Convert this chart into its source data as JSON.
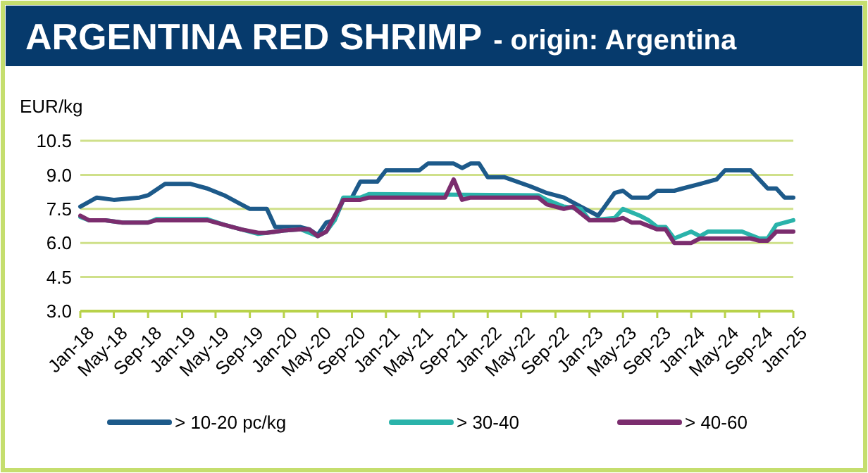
{
  "chart_data": {
    "type": "line",
    "title": "ARGENTINA RED SHRIMP",
    "subtitle": "- origin: Argentina",
    "ylabel": "EUR/kg",
    "xlim": [
      "2018-01",
      "2025-01"
    ],
    "xticks": [
      {
        "value": "2018-01",
        "label": "Jan-18"
      },
      {
        "value": "2018-05",
        "label": "May-18"
      },
      {
        "value": "2018-09",
        "label": "Sep-18"
      },
      {
        "value": "2019-01",
        "label": "Jan-19"
      },
      {
        "value": "2019-05",
        "label": "May-19"
      },
      {
        "value": "2019-09",
        "label": "Sep-19"
      },
      {
        "value": "2020-01",
        "label": "Jan-20"
      },
      {
        "value": "2020-05",
        "label": "May-20"
      },
      {
        "value": "2020-09",
        "label": "Sep-20"
      },
      {
        "value": "2021-01",
        "label": "Jan-21"
      },
      {
        "value": "2021-05",
        "label": "May-21"
      },
      {
        "value": "2021-09",
        "label": "Sep-21"
      },
      {
        "value": "2022-01",
        "label": "Jan-22"
      },
      {
        "value": "2022-05",
        "label": "May-22"
      },
      {
        "value": "2022-09",
        "label": "Sep-22"
      },
      {
        "value": "2023-01",
        "label": "Jan-23"
      },
      {
        "value": "2023-05",
        "label": "May-23"
      },
      {
        "value": "2023-09",
        "label": "Sep-23"
      },
      {
        "value": "2024-01",
        "label": "Jan-24"
      },
      {
        "value": "2024-05",
        "label": "May-24"
      },
      {
        "value": "2024-09",
        "label": "Sep-24"
      },
      {
        "value": "2025-01",
        "label": "Jan-25"
      }
    ],
    "ylim": [
      3,
      10.5
    ],
    "yticks": [
      {
        "value": 3,
        "label": "3.0"
      },
      {
        "value": 4.5,
        "label": "4.5"
      },
      {
        "value": 6,
        "label": "6.0"
      },
      {
        "value": 7.5,
        "label": "7.5"
      },
      {
        "value": 9,
        "label": "9.0"
      },
      {
        "value": 10.5,
        "label": "10.5"
      }
    ],
    "grid": "y",
    "legend": "bottom",
    "marker": "none",
    "line_style": "solid",
    "series": [
      {
        "name": "> 10-20 pc/kg",
        "color": "#1d5a8a",
        "x": [
          "2018-01",
          "2018-03",
          "2018-05",
          "2018-08",
          "2018-09",
          "2018-11",
          "2019-02",
          "2019-04",
          "2019-06",
          "2019-08",
          "2019-09",
          "2019-11",
          "2019-12",
          "2020-03",
          "2020-04",
          "2020-05",
          "2020-06",
          "2020-07",
          "2020-08",
          "2020-09",
          "2020-10",
          "2020-12",
          "2021-01",
          "2021-05",
          "2021-06",
          "2021-09",
          "2021-10",
          "2021-11",
          "2021-12",
          "2022-01",
          "2022-03",
          "2022-06",
          "2022-08",
          "2022-10",
          "2022-12",
          "2023-02",
          "2023-04",
          "2023-05",
          "2023-06",
          "2023-08",
          "2023-09",
          "2023-11",
          "2023-12",
          "2024-02",
          "2024-04",
          "2024-05",
          "2024-08",
          "2024-10",
          "2024-11",
          "2024-12",
          "2025-01"
        ],
        "values": [
          7.6,
          8.0,
          7.9,
          8.0,
          8.1,
          8.6,
          8.6,
          8.4,
          8.1,
          7.7,
          7.5,
          7.5,
          6.7,
          6.7,
          6.6,
          6.35,
          6.9,
          7.0,
          7.9,
          8.0,
          8.7,
          8.7,
          9.2,
          9.2,
          9.5,
          9.5,
          9.3,
          9.5,
          9.5,
          8.9,
          8.9,
          8.5,
          8.2,
          8.0,
          7.6,
          7.2,
          8.2,
          8.3,
          8.0,
          8.0,
          8.3,
          8.3,
          8.4,
          8.6,
          8.8,
          9.2,
          9.2,
          8.4,
          8.4,
          8.0,
          8.0
        ]
      },
      {
        "name": "> 30-40",
        "color": "#2ab3aa",
        "x": [
          "2018-01",
          "2018-02",
          "2018-04",
          "2018-06",
          "2018-09",
          "2018-10",
          "2019-04",
          "2019-06",
          "2019-08",
          "2019-10",
          "2019-11",
          "2020-01",
          "2020-03",
          "2020-05",
          "2020-06",
          "2020-07",
          "2020-08",
          "2020-10",
          "2020-11",
          "2022-07",
          "2022-08",
          "2022-10",
          "2022-12",
          "2023-01",
          "2023-04",
          "2023-05",
          "2023-07",
          "2023-08",
          "2023-09",
          "2023-10",
          "2023-11",
          "2024-01",
          "2024-02",
          "2024-03",
          "2024-07",
          "2024-09",
          "2024-10",
          "2024-11",
          "2025-01"
        ],
        "values": [
          7.15,
          7.0,
          7.0,
          6.9,
          6.9,
          7.05,
          7.05,
          6.8,
          6.6,
          6.4,
          6.45,
          6.55,
          6.6,
          6.3,
          6.5,
          7.0,
          8.0,
          8.0,
          8.15,
          8.1,
          7.9,
          7.6,
          7.5,
          7.0,
          7.1,
          7.5,
          7.2,
          7.0,
          6.7,
          6.7,
          6.2,
          6.5,
          6.3,
          6.5,
          6.5,
          6.2,
          6.2,
          6.8,
          7.0
        ]
      },
      {
        "name": "> 40-60",
        "color": "#7b2d6e",
        "x": [
          "2018-01",
          "2018-02",
          "2018-04",
          "2018-06",
          "2018-09",
          "2018-10",
          "2019-04",
          "2019-06",
          "2019-08",
          "2019-10",
          "2019-11",
          "2020-01",
          "2020-03",
          "2020-04",
          "2020-05",
          "2020-06",
          "2020-08",
          "2020-10",
          "2020-11",
          "2021-08",
          "2021-09",
          "2021-10",
          "2021-11",
          "2022-07",
          "2022-08",
          "2022-10",
          "2022-11",
          "2023-01",
          "2023-04",
          "2023-05",
          "2023-06",
          "2023-07",
          "2023-09",
          "2023-10",
          "2023-11",
          "2024-01",
          "2024-02",
          "2024-08",
          "2024-09",
          "2024-10",
          "2024-11",
          "2025-01"
        ],
        "values": [
          7.2,
          7.0,
          7.0,
          6.9,
          6.9,
          7.0,
          7.0,
          6.8,
          6.6,
          6.45,
          6.45,
          6.55,
          6.6,
          6.6,
          6.3,
          6.5,
          7.9,
          7.9,
          8.0,
          8.0,
          8.8,
          7.9,
          8.0,
          8.0,
          7.7,
          7.5,
          7.6,
          7.0,
          7.0,
          7.1,
          6.9,
          6.9,
          6.6,
          6.6,
          6.0,
          6.0,
          6.2,
          6.2,
          6.1,
          6.1,
          6.5,
          6.5
        ]
      }
    ]
  }
}
